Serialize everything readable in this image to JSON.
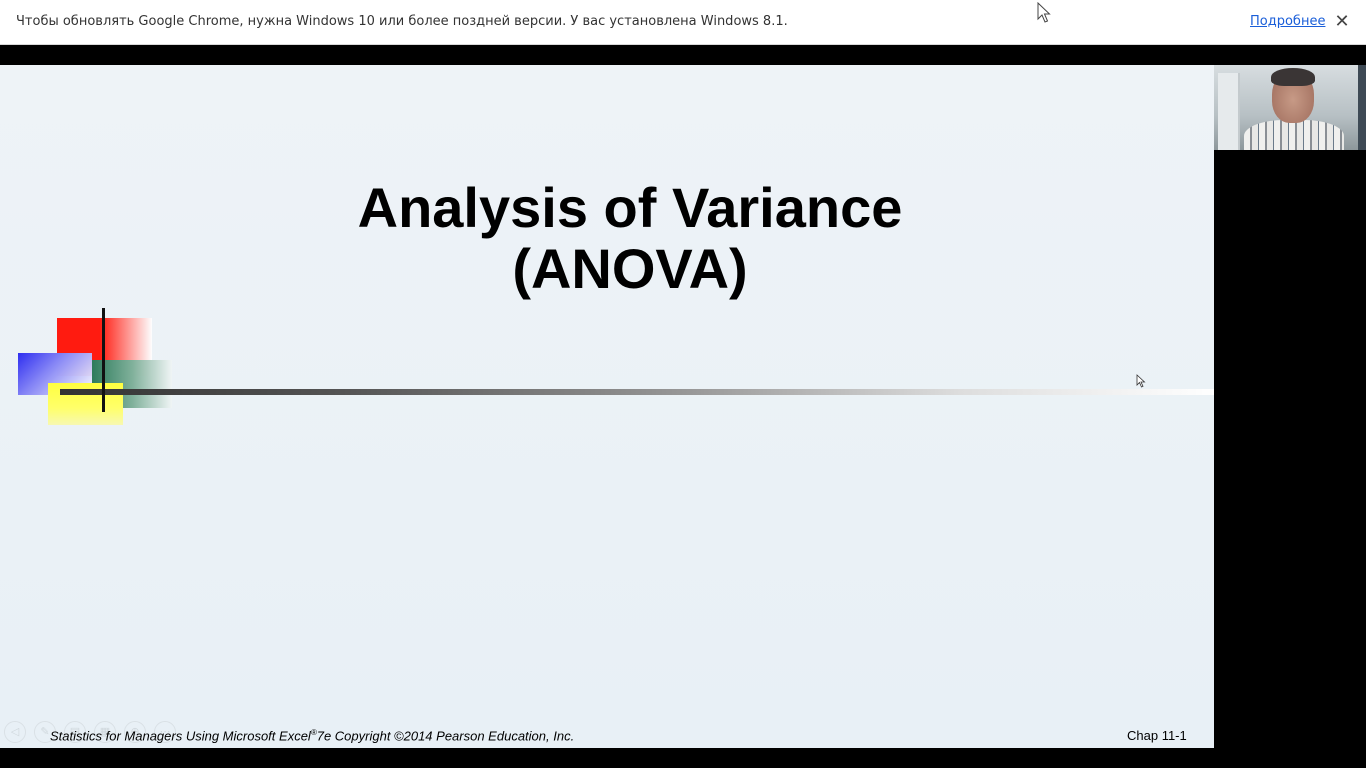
{
  "infobar": {
    "message": "Чтобы обновлять Google Chrome, нужна Windows 10 или более поздней версии. У вас установлена Windows 8.1.",
    "link_label": "Подробнее",
    "close_glyph": "✕"
  },
  "slide": {
    "title_line1": "Analysis of Variance",
    "title_line2": "(ANOVA)",
    "footer": {
      "text_before_sup": "Statistics for Managers Using Microsoft Excel",
      "sup": "®",
      "text_after_sup": "7e Copyright ©2014 Pearson Education, Inc.",
      "chapter": "Chap 11-1"
    },
    "nav_buttons": [
      {
        "icon": "prev-icon",
        "glyph": "◁"
      },
      {
        "icon": "pen-icon",
        "glyph": "✎"
      },
      {
        "icon": "slides-icon",
        "glyph": "▤"
      },
      {
        "icon": "grid-icon",
        "glyph": "▦"
      },
      {
        "icon": "zoom-icon",
        "glyph": "⊕"
      },
      {
        "icon": "more-icon",
        "glyph": "⋯"
      }
    ]
  },
  "colors": {
    "infobar_bg": "#ffffff",
    "link": "#1a5ed9",
    "slide_bg": "#e9f0f6",
    "accent_red": "#ff1b10",
    "accent_blue": "#2e2ef0",
    "accent_green": "#2d7b5c",
    "accent_yellow": "#ffff40"
  }
}
